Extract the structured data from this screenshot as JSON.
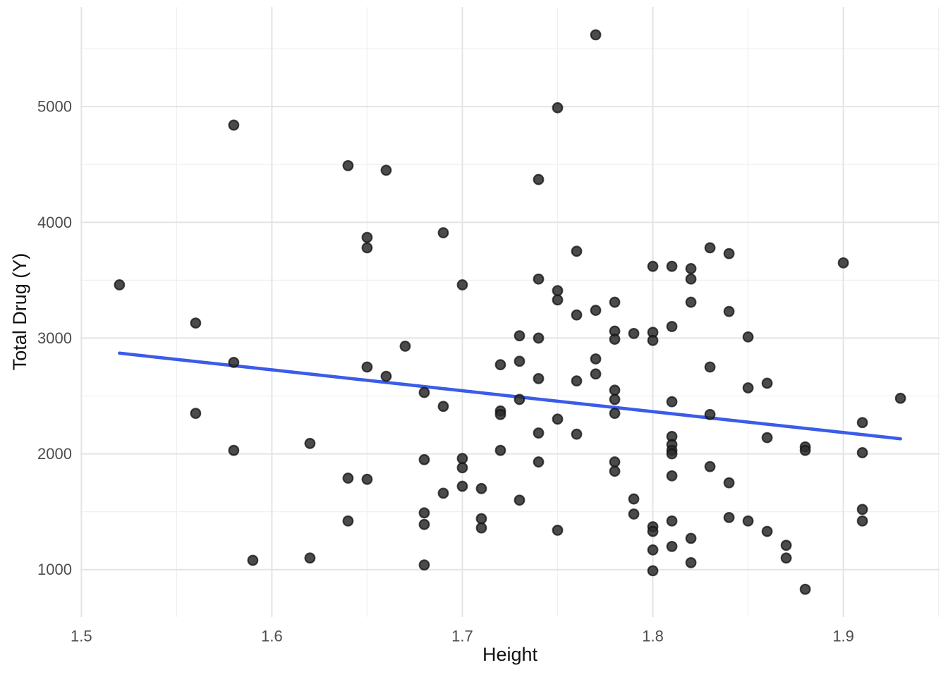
{
  "chart_data": {
    "type": "scatter",
    "title": "",
    "xlabel": "Height",
    "ylabel": "Total Drug (Y)",
    "x_ticks": [
      1.5,
      1.6,
      1.7,
      1.8,
      1.9
    ],
    "x_tick_labels": [
      "1.5",
      "1.6",
      "1.7",
      "1.8",
      "1.9"
    ],
    "x_minor_ticks": [
      1.55,
      1.65,
      1.75,
      1.85,
      1.95
    ],
    "y_ticks": [
      1000,
      2000,
      3000,
      4000,
      5000
    ],
    "y_tick_labels": [
      "1000",
      "2000",
      "3000",
      "4000",
      "5000"
    ],
    "y_minor_ticks": [
      1500,
      2500,
      3500,
      4500,
      5500
    ],
    "xlim": [
      1.4995,
      1.9505
    ],
    "ylim": [
      590,
      5860
    ],
    "grid": "major+minor",
    "legend": "none",
    "points": [
      [
        1.52,
        3460
      ],
      [
        1.56,
        3130
      ],
      [
        1.56,
        2350
      ],
      [
        1.58,
        4840
      ],
      [
        1.58,
        2790
      ],
      [
        1.58,
        2030
      ],
      [
        1.59,
        1080
      ],
      [
        1.62,
        2090
      ],
      [
        1.62,
        1100
      ],
      [
        1.64,
        4490
      ],
      [
        1.64,
        1790
      ],
      [
        1.64,
        1420
      ],
      [
        1.65,
        3870
      ],
      [
        1.65,
        3780
      ],
      [
        1.65,
        2750
      ],
      [
        1.65,
        1780
      ],
      [
        1.66,
        4450
      ],
      [
        1.66,
        2670
      ],
      [
        1.67,
        2930
      ],
      [
        1.68,
        2530
      ],
      [
        1.68,
        1950
      ],
      [
        1.68,
        1490
      ],
      [
        1.68,
        1390
      ],
      [
        1.68,
        1040
      ],
      [
        1.69,
        3910
      ],
      [
        1.69,
        2410
      ],
      [
        1.69,
        1660
      ],
      [
        1.7,
        3460
      ],
      [
        1.7,
        1960
      ],
      [
        1.7,
        1880
      ],
      [
        1.7,
        1720
      ],
      [
        1.71,
        1700
      ],
      [
        1.71,
        1440
      ],
      [
        1.71,
        1360
      ],
      [
        1.72,
        2770
      ],
      [
        1.72,
        2370
      ],
      [
        1.72,
        2340
      ],
      [
        1.72,
        2030
      ],
      [
        1.73,
        3020
      ],
      [
        1.73,
        2800
      ],
      [
        1.73,
        2470
      ],
      [
        1.73,
        1600
      ],
      [
        1.74,
        4370
      ],
      [
        1.74,
        3510
      ],
      [
        1.74,
        3000
      ],
      [
        1.74,
        2650
      ],
      [
        1.74,
        2180
      ],
      [
        1.74,
        1930
      ],
      [
        1.75,
        4990
      ],
      [
        1.75,
        3410
      ],
      [
        1.75,
        3330
      ],
      [
        1.75,
        2300
      ],
      [
        1.75,
        1340
      ],
      [
        1.76,
        3750
      ],
      [
        1.76,
        3200
      ],
      [
        1.76,
        2630
      ],
      [
        1.76,
        2170
      ],
      [
        1.77,
        5620
      ],
      [
        1.77,
        3240
      ],
      [
        1.77,
        2820
      ],
      [
        1.77,
        2690
      ],
      [
        1.78,
        3310
      ],
      [
        1.78,
        3060
      ],
      [
        1.78,
        2990
      ],
      [
        1.78,
        2550
      ],
      [
        1.78,
        2470
      ],
      [
        1.78,
        2350
      ],
      [
        1.78,
        1930
      ],
      [
        1.78,
        1850
      ],
      [
        1.79,
        3040
      ],
      [
        1.79,
        1610
      ],
      [
        1.79,
        1480
      ],
      [
        1.8,
        3620
      ],
      [
        1.8,
        3050
      ],
      [
        1.8,
        2980
      ],
      [
        1.8,
        1370
      ],
      [
        1.8,
        1330
      ],
      [
        1.8,
        1170
      ],
      [
        1.8,
        990
      ],
      [
        1.81,
        3620
      ],
      [
        1.81,
        3100
      ],
      [
        1.81,
        2450
      ],
      [
        1.81,
        2150
      ],
      [
        1.81,
        2080
      ],
      [
        1.81,
        2030
      ],
      [
        1.81,
        2000
      ],
      [
        1.81,
        1810
      ],
      [
        1.81,
        1420
      ],
      [
        1.81,
        1200
      ],
      [
        1.82,
        3600
      ],
      [
        1.82,
        3510
      ],
      [
        1.82,
        3310
      ],
      [
        1.82,
        1270
      ],
      [
        1.82,
        1060
      ],
      [
        1.83,
        3780
      ],
      [
        1.83,
        2750
      ],
      [
        1.83,
        2340
      ],
      [
        1.83,
        1890
      ],
      [
        1.84,
        3730
      ],
      [
        1.84,
        3230
      ],
      [
        1.84,
        1750
      ],
      [
        1.84,
        1450
      ],
      [
        1.85,
        3010
      ],
      [
        1.85,
        2570
      ],
      [
        1.85,
        1420
      ],
      [
        1.86,
        2610
      ],
      [
        1.86,
        2140
      ],
      [
        1.86,
        1330
      ],
      [
        1.87,
        1210
      ],
      [
        1.87,
        1100
      ],
      [
        1.88,
        2060
      ],
      [
        1.88,
        2030
      ],
      [
        1.88,
        830
      ],
      [
        1.9,
        3650
      ],
      [
        1.91,
        2270
      ],
      [
        1.91,
        2010
      ],
      [
        1.91,
        1520
      ],
      [
        1.91,
        1420
      ],
      [
        1.93,
        2480
      ]
    ],
    "trend_line": {
      "type": "linear",
      "x1": 1.52,
      "y1": 2870,
      "x2": 1.93,
      "y2": 2130
    },
    "colors": {
      "point_fill": "#2b2b2b",
      "point_stroke": "#111111",
      "trend_line": "#3A5CE8",
      "grid_major": "#E4E4E4",
      "grid_minor": "#F0F0F0",
      "tick_label": "#4D4D4D",
      "axis_title": "#111111",
      "background": "#FFFFFF"
    }
  }
}
